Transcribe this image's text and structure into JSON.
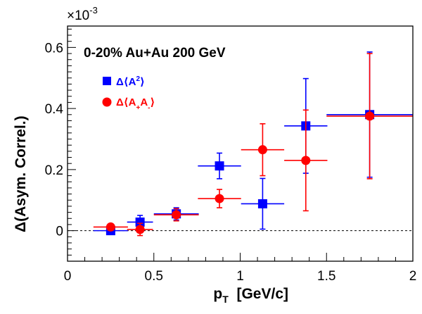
{
  "chart_data": {
    "type": "scatter",
    "annotation": "0-20% Au+Au 200 GeV",
    "xlabel_main": "p",
    "xlabel_sub": "T",
    "xlabel_unit": "[GeV/c]",
    "ylabel": "Δ(Asym. Correl.)",
    "y_exponent_base": "×10",
    "y_exponent_power": "-3",
    "xlim": [
      0,
      2
    ],
    "ylim": [
      -0.1,
      0.67
    ],
    "x_ticks": [
      0,
      0.5,
      1,
      1.5,
      2
    ],
    "x_tick_labels": [
      "0",
      "0.5",
      "1",
      "1.5",
      "2"
    ],
    "y_ticks": [
      0,
      0.2,
      0.4,
      0.6
    ],
    "y_tick_labels": [
      "0",
      "0.2",
      "0.4",
      "0.6"
    ],
    "reference_line_y": 0,
    "legend_position": "upper-left",
    "series": [
      {
        "legend_prefix": "Δ⟨A",
        "legend_sup": "2",
        "legend_suffix": "⟩",
        "color": "#0000ff",
        "marker": "square",
        "points": [
          {
            "x": 0.25,
            "y": 0.0,
            "xerr": 0.1,
            "yerr": 0.01
          },
          {
            "x": 0.42,
            "y": 0.028,
            "xerr": 0.075,
            "yerr": 0.022
          },
          {
            "x": 0.63,
            "y": 0.055,
            "xerr": 0.13,
            "yerr": 0.02
          },
          {
            "x": 0.88,
            "y": 0.212,
            "xerr": 0.125,
            "yerr": 0.042
          },
          {
            "x": 1.13,
            "y": 0.088,
            "xerr": 0.125,
            "yerr": 0.083
          },
          {
            "x": 1.38,
            "y": 0.343,
            "xerr": 0.125,
            "yerr": 0.155
          },
          {
            "x": 1.75,
            "y": 0.38,
            "xerr": 0.25,
            "yerr": 0.205
          }
        ]
      },
      {
        "legend_prefix": "Δ⟨A",
        "legend_sub1": "+",
        "legend_mid": "A",
        "legend_sub2": "-",
        "legend_suffix": "⟩",
        "color": "#ff0000",
        "marker": "circle",
        "points": [
          {
            "x": 0.25,
            "y": 0.012,
            "xerr": 0.1,
            "yerr": 0.01
          },
          {
            "x": 0.42,
            "y": 0.004,
            "xerr": 0.075,
            "yerr": 0.02
          },
          {
            "x": 0.63,
            "y": 0.052,
            "xerr": 0.13,
            "yerr": 0.02
          },
          {
            "x": 0.88,
            "y": 0.105,
            "xerr": 0.125,
            "yerr": 0.03
          },
          {
            "x": 1.13,
            "y": 0.265,
            "xerr": 0.125,
            "yerr": 0.085
          },
          {
            "x": 1.38,
            "y": 0.23,
            "xerr": 0.125,
            "yerr": 0.165
          },
          {
            "x": 1.75,
            "y": 0.375,
            "xerr": 0.25,
            "yerr": 0.205
          }
        ]
      }
    ]
  }
}
